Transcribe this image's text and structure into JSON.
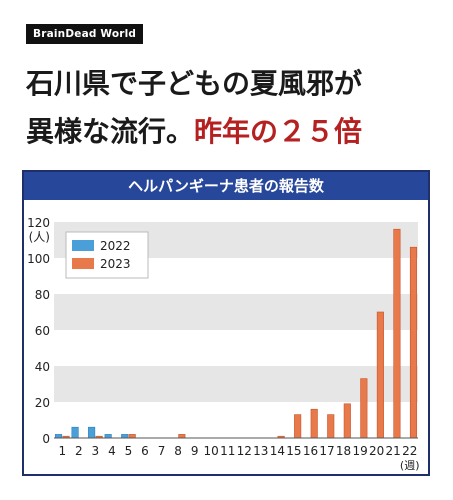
{
  "brand": {
    "label": "BrainDead World"
  },
  "headline": {
    "line1": "石川県で子どもの夏風邪が",
    "line2_main": "異様な流行。",
    "line2_accent": "昨年の２５倍"
  },
  "colors": {
    "series_2022": "#4a9fd8",
    "series_2023": "#e8794a",
    "title_bar": "#27479a",
    "frame": "#1e2f6a",
    "accent_text": "#b52020"
  },
  "chart_data": {
    "type": "bar",
    "title": "ヘルパンギーナ患者の報告数",
    "ylabel": "(人)",
    "xlabel_unit": "(週)",
    "categories": [
      "1",
      "2",
      "3",
      "4",
      "5",
      "6",
      "7",
      "8",
      "9",
      "10",
      "11",
      "12",
      "13",
      "14",
      "15",
      "16",
      "17",
      "18",
      "19",
      "20",
      "21",
      "22"
    ],
    "ylim": [
      0,
      120
    ],
    "yticks": [
      0,
      20,
      40,
      60,
      80,
      100,
      120
    ],
    "legend_position": "top-left",
    "grid": "alternating horizontal bands",
    "series": [
      {
        "name": "2022",
        "values": [
          2,
          6,
          6,
          2,
          2,
          0,
          0,
          0,
          0,
          0,
          0,
          0,
          0,
          0,
          0,
          0,
          0,
          0,
          0,
          0,
          0,
          0
        ]
      },
      {
        "name": "2023",
        "values": [
          1,
          0,
          1,
          0,
          2,
          0,
          0,
          2,
          0,
          0,
          0,
          0,
          0,
          1,
          13,
          16,
          13,
          19,
          33,
          70,
          116,
          106
        ]
      }
    ]
  }
}
